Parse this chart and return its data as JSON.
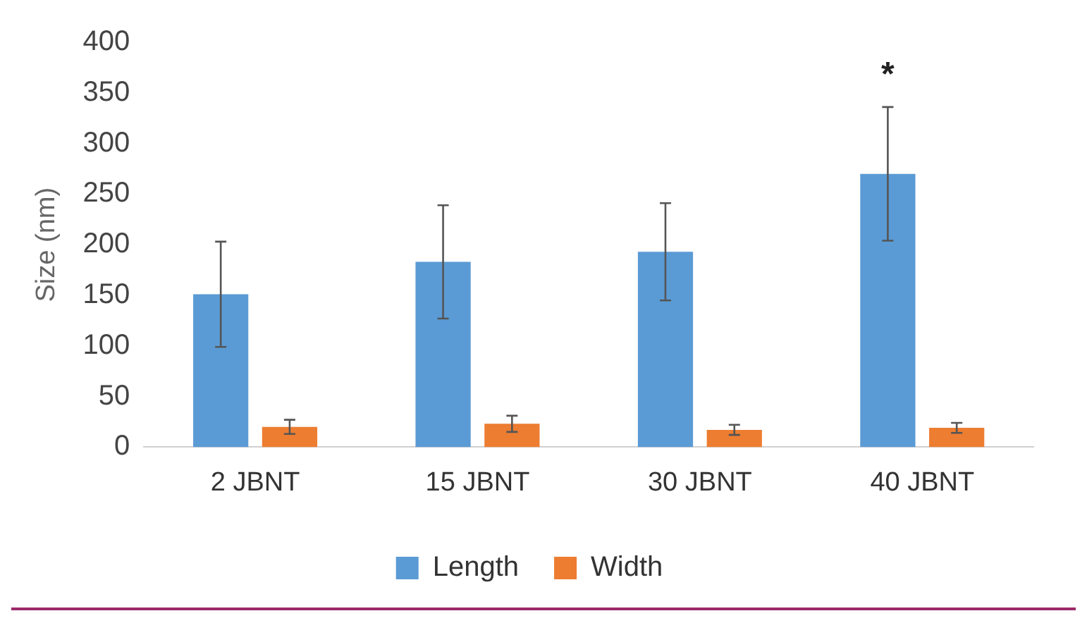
{
  "chart_data": {
    "type": "bar",
    "ylabel": "Size (nm)",
    "categories": [
      "2 JBNT",
      "15 JBNT",
      "30 JBNT",
      "40 JBNT"
    ],
    "series": [
      {
        "name": "Length",
        "color": "#5b9bd5",
        "values": [
          151,
          183,
          193,
          270
        ],
        "errors": [
          52,
          56,
          48,
          66
        ]
      },
      {
        "name": "Width",
        "color": "#ed7d31",
        "values": [
          20,
          23,
          17,
          19
        ],
        "errors": [
          7,
          8,
          5,
          5
        ]
      }
    ],
    "ylim": [
      0,
      400
    ],
    "yticks": [
      0,
      50,
      100,
      150,
      200,
      250,
      300,
      350,
      400
    ],
    "grid": false,
    "legend": "bottom",
    "annotations": [
      "*"
    ]
  }
}
